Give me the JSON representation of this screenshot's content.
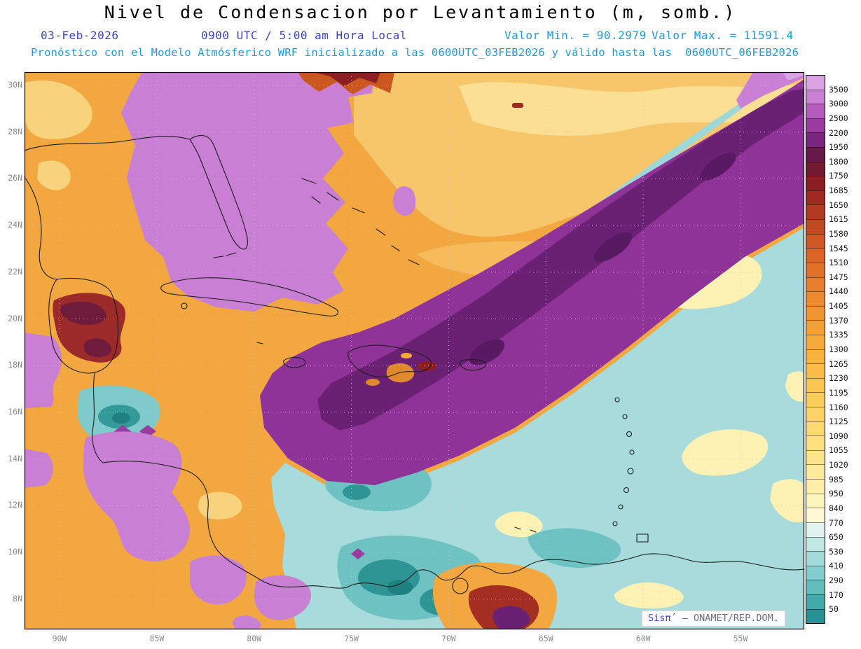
{
  "header": {
    "title": "Nivel de Condensacion por Levantamiento (m, somb.)",
    "date": "03-Feb-2026",
    "time": "0900 UTC / 5:00 am Hora Local",
    "valor_min": "Valor Min. = 90.2979",
    "valor_max": "Valor Max. = 11591.4",
    "forecast_line": "Pronóstico con el Modelo Atmósferico WRF inicializado a las 0600UTC_03FEB2026 y válido hasta las  0600UTC_06FEB2026"
  },
  "watermark": {
    "brand": "Sisπ´",
    "rest": " – ONAMET/REP.DOM."
  },
  "palette": {
    "header_blue": "#3a43d0",
    "header_cyan": "#1e9bdc",
    "axis_label_gray": "#8a8a8a",
    "map_border": "#000000",
    "grid_dots": "#c8c8c8"
  },
  "chart_data": {
    "type": "heatmap",
    "title": "Nivel de Condensacion por Levantamiento (m, somb.)",
    "units": "m",
    "model": "WRF",
    "init_time": "0600UTC_03FEB2026",
    "valid_until": "0600UTC_06FEB2026",
    "shown_time": "0900 UTC / 5:00 am Hora Local, 03-Feb-2026",
    "value_min": 90.2979,
    "value_max": 11591.4,
    "x_ticks": [
      "90W",
      "85W",
      "80W",
      "75W",
      "70W",
      "65W",
      "60W",
      "55W"
    ],
    "y_ticks": [
      "30N",
      "28N",
      "26N",
      "24N",
      "22N",
      "20N",
      "18N",
      "16N",
      "14N",
      "12N",
      "10N",
      "8N"
    ],
    "grid": true,
    "colorbar_position": "right",
    "colorbar_levels": [
      3500,
      3000,
      2500,
      2200,
      1950,
      1800,
      1750,
      1685,
      1650,
      1615,
      1580,
      1545,
      1510,
      1475,
      1440,
      1405,
      1370,
      1335,
      1300,
      1265,
      1230,
      1195,
      1160,
      1125,
      1090,
      1055,
      1020,
      985,
      950,
      840,
      770,
      650,
      530,
      410,
      290,
      170,
      50
    ],
    "colorbar_colors": [
      "#dca3e3",
      "#c87fd4",
      "#b35cbe",
      "#993b9f",
      "#7a2580",
      "#661a4a",
      "#701b31",
      "#8c1f24",
      "#a02a20",
      "#b23a21",
      "#c24a23",
      "#cf5825",
      "#da6527",
      "#e17129",
      "#e77e2b",
      "#ec8a2e",
      "#f09531",
      "#f3a034",
      "#f5aa39",
      "#f7b33f",
      "#f9bc47",
      "#fac450",
      "#fbcc5a",
      "#fcd365",
      "#fdda71",
      "#fde07e",
      "#fee58c",
      "#feea9b",
      "#ffefab",
      "#fff4bd",
      "#fff9d4",
      "#e2f4f0",
      "#c2e8e6",
      "#a2dbda",
      "#82cdcd",
      "#62bdbd",
      "#42aaaa",
      "#259393"
    ],
    "regions_approx": [
      {
        "area": "Gulf of Mexico, Florida and western Cuba",
        "approx_value_m": "3000-3500"
      },
      {
        "area": "SW-NE band from Hispaniola/Puerto Rico into the NE Atlantic",
        "approx_value_m": "1950-2500"
      },
      {
        "area": "Central and NE Atlantic, western Caribbean",
        "approx_value_m": "1000-2500"
      },
      {
        "area": "Eastern Caribbean and off northern South America",
        "approx_value_m": "170-840"
      },
      {
        "area": "Local dark-red maxima spots",
        "approx_value_m": "1650-1800"
      }
    ]
  }
}
